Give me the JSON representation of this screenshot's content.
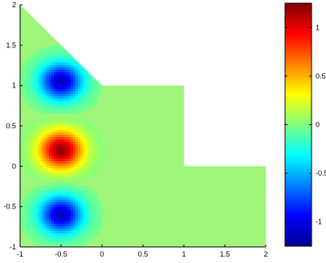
{
  "chart_data": {
    "type": "heatmap",
    "title": "",
    "xlabel": "",
    "ylabel": "",
    "xlim": [
      -1,
      2
    ],
    "ylim": [
      -1,
      2
    ],
    "xticks": [
      "-1",
      "-0.5",
      "0",
      "0.5",
      "1",
      "1.5",
      "2"
    ],
    "yticks": [
      "-1",
      "-0.5",
      "0",
      "0.5",
      "1",
      "1.5",
      "2"
    ],
    "domain_polygon": [
      [
        -1,
        -1
      ],
      [
        2,
        -1
      ],
      [
        2,
        0
      ],
      [
        1,
        0
      ],
      [
        1,
        1
      ],
      [
        0,
        1
      ],
      [
        -1,
        2
      ]
    ],
    "field": {
      "description_note": "",
      "lobes": [
        {
          "sign": "negative",
          "center": [
            -0.5,
            1.05
          ],
          "peak": -1.1
        },
        {
          "sign": "positive",
          "center": [
            -0.5,
            0.2
          ],
          "peak": 1.2
        },
        {
          "sign": "negative",
          "center": [
            -0.5,
            -0.6
          ],
          "peak": -1.1
        }
      ]
    },
    "grid": false,
    "colorbar": {
      "min": -1.25,
      "max": 1.25,
      "ticks": [
        "1",
        "0.5",
        "0",
        "-0.5",
        "-1"
      ],
      "colormap": "jet",
      "position": "right"
    },
    "colors": {
      "background_field": "#9ff57a",
      "axis": "#000000"
    }
  }
}
